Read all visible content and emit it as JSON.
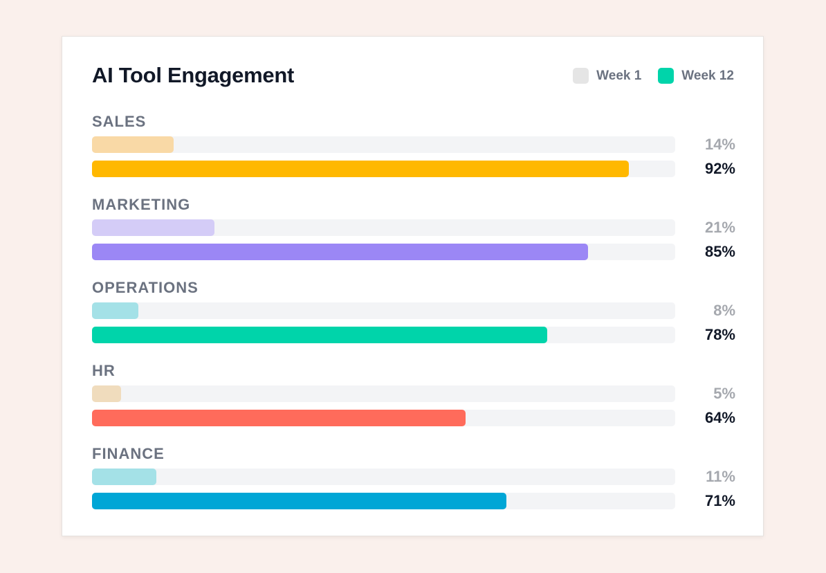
{
  "colors": {
    "legend_week1": "#e5e5e5",
    "legend_week12": "#00d4aa",
    "track": "#f3f4f6"
  },
  "chart_data": {
    "type": "bar",
    "orientation": "horizontal",
    "title": "AI Tool Engagement",
    "xlim": [
      0,
      100
    ],
    "unit": "%",
    "legend": {
      "placement": "top-right",
      "entries": [
        "Week 1",
        "Week 12"
      ]
    },
    "categories": [
      "SALES",
      "MARKETING",
      "OPERATIONS",
      "HR",
      "FINANCE"
    ],
    "series": [
      {
        "name": "Week 1",
        "values": [
          14,
          21,
          8,
          5,
          11
        ],
        "labels": [
          "14%",
          "21%",
          "8%",
          "5%",
          "11%"
        ],
        "colors": [
          "#f9d9a6",
          "#d4ccf7",
          "#a4e1e7",
          "#f0dcbd",
          "#a4e1e7"
        ]
      },
      {
        "name": "Week 12",
        "values": [
          92,
          85,
          78,
          64,
          71
        ],
        "labels": [
          "92%",
          "85%",
          "78%",
          "64%",
          "71%"
        ],
        "colors": [
          "#ffb800",
          "#9b87f5",
          "#00d4aa",
          "#ff6b5b",
          "#00a6d6"
        ]
      }
    ]
  }
}
